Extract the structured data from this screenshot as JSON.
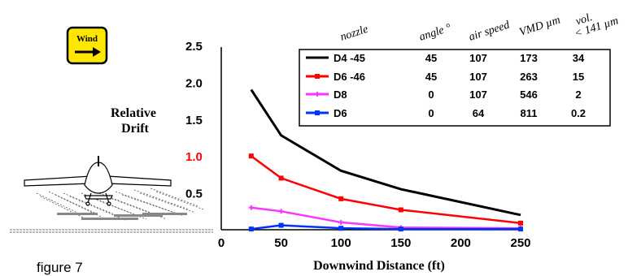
{
  "wind_badge": {
    "label": "Wind",
    "icon": "right-arrow-icon",
    "fill": "#ffe600"
  },
  "figure_caption": "figure 7",
  "chart_data": {
    "type": "line",
    "xlabel": "Downwind Distance (ft)",
    "ylabel": "Relative Drift",
    "x_ticks": [
      0,
      50,
      100,
      150,
      200,
      250
    ],
    "y_ticks": [
      "0.5",
      "1.0",
      "1.5",
      "2.0",
      "2.5"
    ],
    "xlim": [
      0,
      250
    ],
    "ylim": [
      0,
      2.5
    ],
    "highlight_tick": {
      "label": "1.0",
      "color": "#ff0000"
    },
    "legend_columns": [
      "nozzle",
      "angle °",
      "air speed",
      "VMD µm",
      "vol. < 141 µm"
    ],
    "legend_position": "top-right",
    "series": [
      {
        "name": "D4 -45",
        "color": "#000000",
        "marker": "none",
        "angle": "45",
        "air_speed": "107",
        "vmd": "173",
        "vol": "34",
        "x": [
          25,
          50,
          100,
          150,
          250
        ],
        "y": [
          1.9,
          1.28,
          0.8,
          0.55,
          0.2
        ]
      },
      {
        "name": "D6 -46",
        "color": "#ff0000",
        "marker": "square",
        "angle": "45",
        "air_speed": "107",
        "vmd": "263",
        "vol": "15",
        "x": [
          25,
          50,
          100,
          150,
          250
        ],
        "y": [
          1.0,
          0.7,
          0.42,
          0.27,
          0.09
        ]
      },
      {
        "name": "D8",
        "color": "#ff33ff",
        "marker": "plus",
        "angle": "0",
        "air_speed": "107",
        "vmd": "546",
        "vol": "2",
        "x": [
          25,
          50,
          100,
          150,
          250
        ],
        "y": [
          0.3,
          0.25,
          0.1,
          0.03,
          0.02
        ]
      },
      {
        "name": "D6",
        "color": "#0033ff",
        "marker": "square",
        "angle": "0",
        "air_speed": "64",
        "vmd": "811",
        "vol": "0.2",
        "x": [
          25,
          50,
          100,
          150,
          250
        ],
        "y": [
          0.01,
          0.06,
          0.02,
          0.01,
          0.01
        ]
      }
    ]
  }
}
